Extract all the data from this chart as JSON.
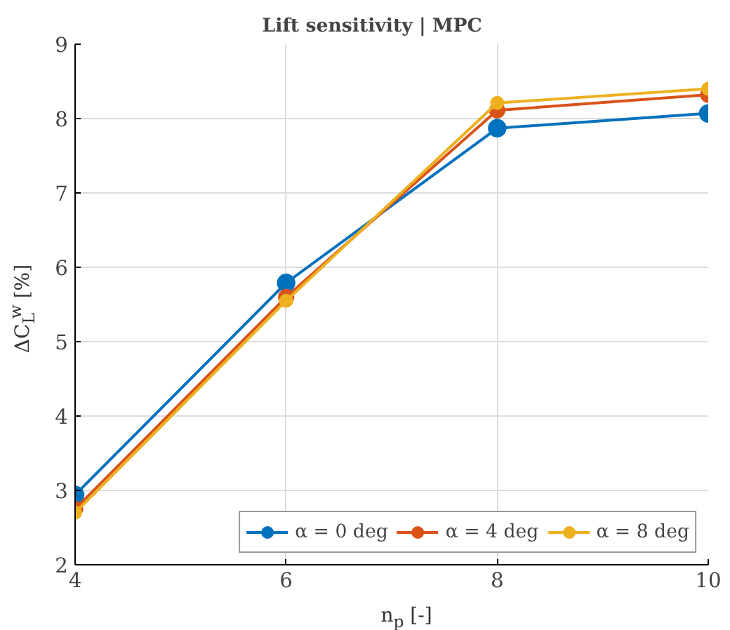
{
  "chart_data": {
    "type": "line",
    "title": "Lift sensitivity    |    MPC",
    "xlabel": "n$_{p}$ [-]",
    "ylabel": "ΔC$_{L}$$^{w}$ [%]",
    "x": [
      4,
      6,
      8,
      10
    ],
    "series": [
      {
        "name": "α = 0 deg",
        "color": "#0072bd",
        "values": [
          2.94,
          5.79,
          7.87,
          8.07
        ]
      },
      {
        "name": "α = 4 deg",
        "color": "#d95319",
        "values": [
          2.75,
          5.6,
          8.11,
          8.32
        ]
      },
      {
        "name": "α = 8 deg",
        "color": "#edb120",
        "values": [
          2.7,
          5.55,
          8.21,
          8.4
        ]
      }
    ],
    "xlim": [
      4,
      10
    ],
    "xticks": [
      4,
      6,
      8,
      10
    ],
    "ylim": [
      2,
      9
    ],
    "yticks": [
      2,
      3,
      4,
      5,
      6,
      7,
      8,
      9
    ],
    "grid": true,
    "legend": "bottom right",
    "marker": "circle",
    "line_style": "solid"
  }
}
